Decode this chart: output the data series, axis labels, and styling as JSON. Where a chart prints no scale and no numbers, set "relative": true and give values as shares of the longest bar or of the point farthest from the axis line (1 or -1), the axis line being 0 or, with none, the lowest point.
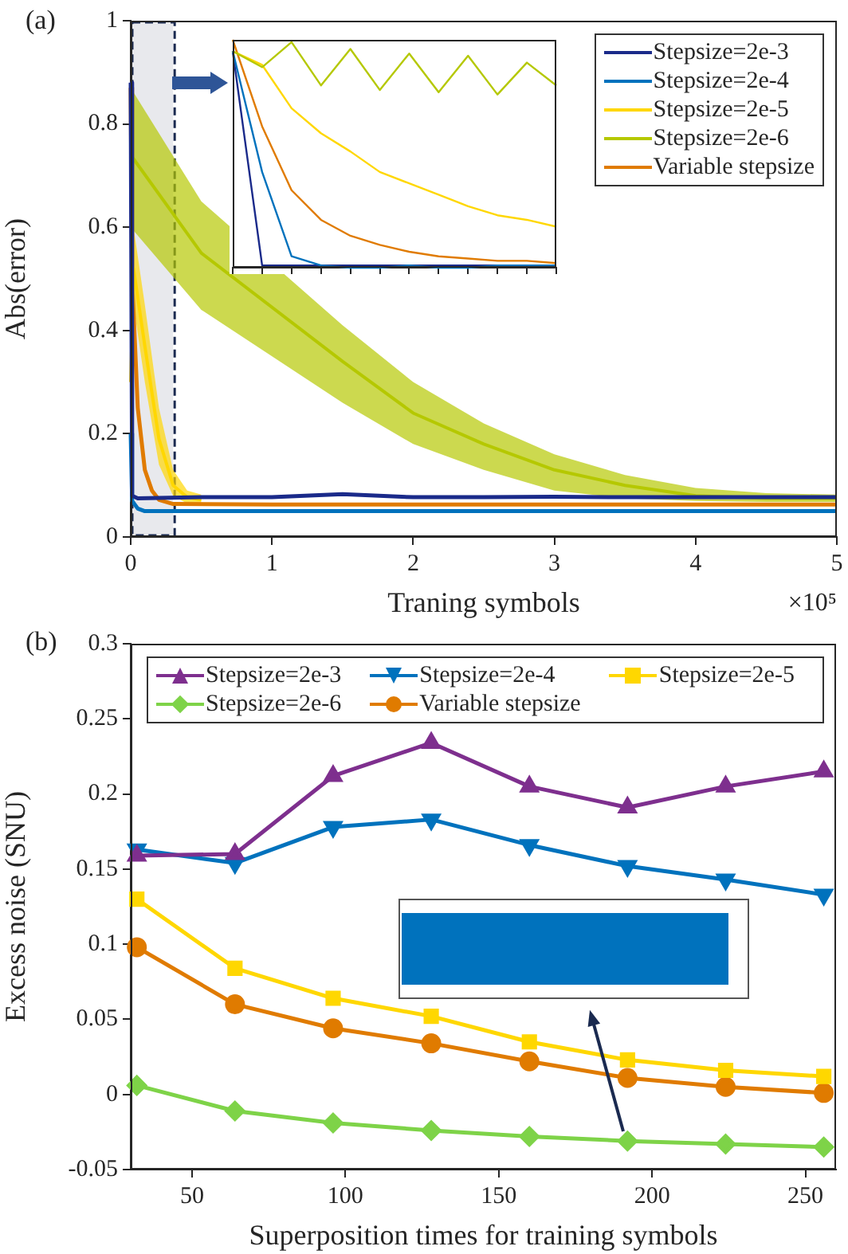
{
  "chart_data": [
    {
      "type": "line",
      "title": "(a)",
      "xlabel": "Traning symbols",
      "ylabel": "Abs(error)",
      "annotations": [
        "×10⁵"
      ],
      "xlim": [
        0,
        5
      ],
      "xticks": [
        0,
        1,
        2,
        3,
        4,
        5
      ],
      "ylim": [
        0,
        1
      ],
      "yticks": [
        0,
        0.2,
        0.4,
        0.6,
        0.8,
        1
      ],
      "grid": false,
      "legend": "top right",
      "marker": "none",
      "bands": [
        {
          "axis": "x",
          "from": 0,
          "to": 0.3,
          "color": "#1a2a50"
        }
      ],
      "series": [
        {
          "name": "Stepsize=2e-3",
          "color": "#1a2a8a",
          "x": [
            0,
            0.01,
            0.05,
            0.5,
            1,
            1.5,
            2,
            2.5,
            3,
            3.5,
            4,
            4.5,
            5
          ],
          "values": [
            0.88,
            0.08,
            0.075,
            0.077,
            0.077,
            0.083,
            0.077,
            0.077,
            0.078,
            0.077,
            0.077,
            0.077,
            0.077
          ]
        },
        {
          "name": "Stepsize=2e-4",
          "color": "#0072bd",
          "x": [
            0,
            0.01,
            0.05,
            0.1,
            0.2,
            0.5,
            1,
            2,
            3,
            4,
            5
          ],
          "values": [
            0.2,
            0.07,
            0.055,
            0.05,
            0.05,
            0.05,
            0.05,
            0.05,
            0.05,
            0.05,
            0.05
          ]
        },
        {
          "name": "Stepsize=2e-5",
          "color": "#ffd700",
          "x": [
            0,
            0.02,
            0.1,
            0.2,
            0.3,
            0.4,
            0.5
          ],
          "values": [
            0.3,
            0.52,
            0.37,
            0.19,
            0.1,
            0.077,
            0.072
          ],
          "lower": [
            0,
            0.45,
            0.3,
            0.14,
            0.08,
            0.065,
            0.062
          ],
          "upper": [
            0.6,
            0.6,
            0.45,
            0.25,
            0.13,
            0.09,
            0.082
          ]
        },
        {
          "name": "Stepsize=2e-6",
          "color": "#b5c800",
          "x": [
            0,
            0.5,
            1.5,
            2,
            2.5,
            3,
            3.5,
            4,
            4.5,
            5
          ],
          "values": [
            0.74,
            0.55,
            0.34,
            0.24,
            0.18,
            0.13,
            0.1,
            0.08,
            0.075,
            0.075
          ],
          "lower": [
            0.6,
            0.44,
            0.26,
            0.18,
            0.13,
            0.09,
            0.075,
            0.07,
            0.068,
            0.068
          ],
          "upper": [
            0.87,
            0.65,
            0.41,
            0.3,
            0.22,
            0.16,
            0.12,
            0.095,
            0.085,
            0.082
          ]
        },
        {
          "name": "Variable stepsize",
          "color": "#e07b00",
          "x": [
            0,
            0.01,
            0.05,
            0.1,
            0.15,
            0.2,
            0.3,
            1,
            2,
            3,
            4,
            5
          ],
          "values": [
            0.87,
            0.5,
            0.25,
            0.13,
            0.09,
            0.072,
            0.064,
            0.063,
            0.063,
            0.063,
            0.063,
            0.063
          ]
        }
      ]
    },
    {
      "type": "line",
      "relative": true,
      "categories": [
        null,
        null,
        null,
        null,
        null,
        null,
        null,
        null,
        null,
        null,
        null,
        null
      ],
      "tick_labels": false,
      "grid": false,
      "marker": "none",
      "series": [
        {
          "color": "#b5c800",
          "values": [
            0.95,
            0.88,
            0.99,
            0.8,
            0.96,
            0.78,
            0.94,
            0.77,
            0.93,
            0.76,
            0.9,
            0.8
          ]
        },
        {
          "color": "#ffd700",
          "values": [
            0.95,
            0.89,
            0.7,
            0.59,
            0.51,
            0.42,
            0.37,
            0.32,
            0.27,
            0.23,
            0.21,
            0.18
          ]
        },
        {
          "color": "#e07b00",
          "values": [
            1,
            0.62,
            0.34,
            0.21,
            0.14,
            0.1,
            0.07,
            0.05,
            0.04,
            0.03,
            0.03,
            0.02
          ]
        },
        {
          "color": "#0072bd",
          "values": [
            0.95,
            0.42,
            0.05,
            0.01,
            0,
            0,
            0.01,
            0,
            0,
            0.01,
            0.01,
            0.01
          ]
        },
        {
          "color": "#1a2a8a",
          "values": [
            0.95,
            0.01,
            0.01,
            0.01,
            0.01,
            0.01,
            0.01,
            0.01,
            0.01,
            0.01,
            0.01,
            0.01
          ]
        }
      ]
    },
    {
      "type": "line",
      "title": "(b)",
      "xlabel": "Superposition times for training symbols",
      "ylabel": "Excess noise (SNU)",
      "x": [
        32,
        64,
        96,
        128,
        160,
        192,
        224,
        256
      ],
      "xlim": [
        30,
        260
      ],
      "xticks": [
        50,
        100,
        150,
        200,
        250
      ],
      "ylim": [
        -0.05,
        0.3
      ],
      "yticks": [
        -0.05,
        0,
        0.05,
        0.1,
        0.15,
        0.2,
        0.25,
        0.3
      ],
      "grid": false,
      "legend": "top",
      "series": [
        {
          "name": "Stepsize=2e-3",
          "color": "#7e2f8e",
          "marker": "triangle",
          "values": [
            0.159,
            0.16,
            0.212,
            0.234,
            0.205,
            0.191,
            0.205,
            0.215
          ]
        },
        {
          "name": "Stepsize=2e-4",
          "color": "#0072bd",
          "marker": "triangle-down",
          "values": [
            0.163,
            0.154,
            0.178,
            0.183,
            0.166,
            0.152,
            0.143,
            0.133
          ]
        },
        {
          "name": "Stepsize=2e-5",
          "color": "#ffd700",
          "marker": "square",
          "values": [
            0.13,
            0.084,
            0.064,
            0.052,
            0.035,
            0.023,
            0.016,
            0.012
          ]
        },
        {
          "name": "Stepsize=2e-6",
          "color": "#7ed348",
          "marker": "diamond",
          "values": [
            0.006,
            -0.011,
            -0.019,
            -0.024,
            -0.028,
            -0.031,
            -0.033,
            -0.035
          ]
        },
        {
          "name": "Variable stepsize",
          "color": "#e07b00",
          "marker": "circle",
          "values": [
            0.098,
            0.06,
            0.044,
            0.034,
            0.022,
            0.011,
            0.005,
            0.001
          ]
        }
      ]
    }
  ]
}
